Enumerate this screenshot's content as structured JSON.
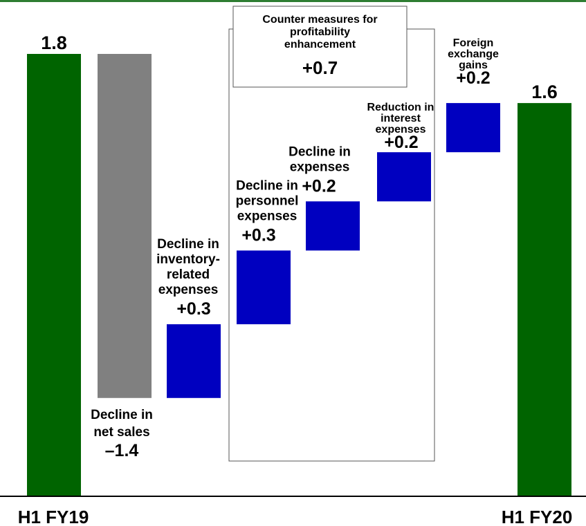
{
  "colors": {
    "endpoint": "#006400",
    "decrease": "#808080",
    "increase": "#0000c0",
    "rule": "#2e7d32"
  },
  "chart_data": {
    "type": "bar",
    "subtype": "waterfall",
    "categories": [
      "H1 FY19",
      "",
      "",
      "",
      "",
      "",
      "",
      "H1 FY20"
    ],
    "steps": [
      {
        "kind": "total",
        "value": 1.8,
        "label": [],
        "value_text": "1.8",
        "category": "H1 FY19"
      },
      {
        "kind": "delta",
        "value": -1.4,
        "label": [
          "Decline in",
          "net sales"
        ],
        "value_text": "–1.4"
      },
      {
        "kind": "delta",
        "value": 0.3,
        "label": [
          "Decline in",
          "inventory-",
          "related",
          "expenses"
        ],
        "value_text": "+0.3"
      },
      {
        "kind": "delta",
        "value": 0.3,
        "label": [
          "Decline in",
          "personnel",
          "expenses"
        ],
        "value_text": "+0.3"
      },
      {
        "kind": "delta",
        "value": 0.2,
        "label": [
          "Decline in",
          "expenses"
        ],
        "value_text": "+0.2"
      },
      {
        "kind": "delta",
        "value": 0.2,
        "label": [
          "Reduction in",
          "interest",
          "expenses"
        ],
        "value_text": "+0.2"
      },
      {
        "kind": "delta",
        "value": 0.2,
        "label": [
          "Foreign",
          "exchange",
          "gains"
        ],
        "value_text": "+0.2"
      },
      {
        "kind": "total",
        "value": 1.6,
        "label": [],
        "value_text": "1.6",
        "category": "H1 FY20"
      }
    ],
    "group": {
      "title": [
        "Counter measures for",
        "profitability",
        "enhancement"
      ],
      "value_text": "+0.7",
      "from_step": 3,
      "to_step": 5
    },
    "ylim": [
      0,
      1.8
    ],
    "grid": false,
    "legend": "none"
  }
}
